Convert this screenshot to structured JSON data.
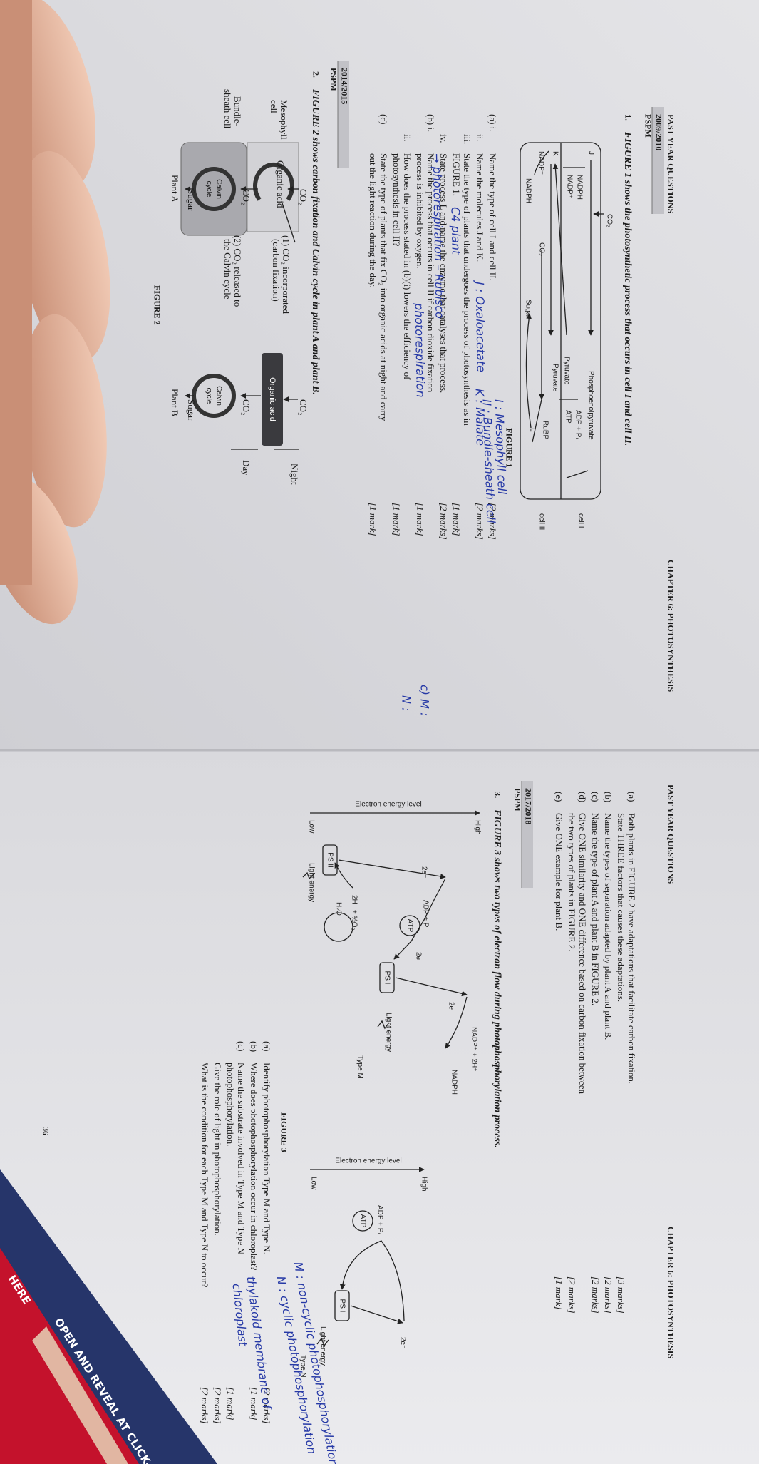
{
  "left_page": {
    "running_head": "PAST YEAR QUESTIONS",
    "chapter_head": "CHAPTER 6: PHOTOSYNTHESIS",
    "q1": {
      "session": "2009/2010",
      "exam": "PSPM",
      "number": "1.",
      "stem": "FIGURE 1 shows the photosynthetic process that occurs in cell I and cell II.",
      "figure": {
        "labels": [
          "CO₂",
          "J",
          "Phosphoenolpyruvate",
          "cell I",
          "NADPH",
          "NADP⁺",
          "ADP + Pᵢ",
          "ATP",
          "Pyruvate",
          "K",
          "Pyruvate",
          "RuBP",
          "L",
          "cell II",
          "NADP⁺",
          "CO₂",
          "NADPH",
          "Sugar"
        ],
        "caption": "FIGURE 1"
      },
      "parts": [
        {
          "label": "(a)  i.",
          "lines": [
            "Name the type of cell I and cell II."
          ],
          "marks": "[2 marks]"
        },
        {
          "label": "ii.",
          "lines": [
            "Name the molecules J and K."
          ],
          "marks": "[2 marks]"
        },
        {
          "label": "iii.",
          "lines": [
            "State the type of plants that undergoes the process of photosynthesis as in",
            "FIGURE 1."
          ],
          "marks": "[1 mark]"
        },
        {
          "label": "iv.",
          "lines": [
            "State process L and name the enzyme that catalyses that process."
          ],
          "marks": "[2 marks]"
        },
        {
          "label": "(b)  i.",
          "lines": [
            "Name the process that occurs in cell II if carbon dioxide fixation",
            "process is inhibited by oxygen."
          ],
          "marks": "[1 mark]"
        },
        {
          "label": "ii.",
          "lines": [
            "How does the process stated in (b)(i) lowers the efficiency of",
            "photosynthesis in cell II?"
          ],
          "marks": "[1 mark]"
        },
        {
          "label": "(c)",
          "lines": [
            "State the type of plants that fix CO₂ into organic acids at night and carry",
            "out the light reaction during the day."
          ],
          "marks": "[1 mark]"
        }
      ]
    },
    "q2": {
      "session": "2014/2015",
      "exam": "PSPM",
      "number": "2.",
      "stem": "FIGURE 2 shows carbon fixation and Calvin cycle in plant A and plant B.",
      "figure": {
        "plant_a": [
          "CO₂",
          "Mesophyll",
          "cell",
          "Organic acid",
          "(1) CO₂ incorporated",
          "(carbon fixation)",
          "CO₂",
          "Bundle-",
          "sheath cell",
          "Calvin",
          "cycle",
          "(2) CO₂ released to",
          "the Calvin cycle",
          "Sugar",
          "Plant A"
        ],
        "plant_b": [
          "CO₂",
          "Night",
          "Organic acid",
          "Day",
          "CO₂",
          "Calvin",
          "cycle",
          "Sugar",
          "Plant B"
        ],
        "caption": "FIGURE 2"
      }
    }
  },
  "right_page": {
    "running_head": "PAST YEAR QUESTIONS",
    "chapter_head": "CHAPTER 6: PHOTOSYNTHESIS",
    "q2_parts": [
      {
        "label": "(a)",
        "lines": [
          "Both plants in FIGURE 2 have adaptations that facilitate carbon fixation.",
          "State THREE factors that causes these adaptations."
        ],
        "marks": "[3 marks]"
      },
      {
        "label": "(b)",
        "lines": [
          "Name the types of separation adapted by plant A and plant B."
        ],
        "marks": "[2 marks]"
      },
      {
        "label": "(c)",
        "lines": [
          "Name the type of plant A and plant B in FIGURE 2."
        ],
        "marks": "[2 marks]"
      },
      {
        "label": "(d)",
        "lines": [
          "Give ONE similarity and ONE difference based on carbon fixation between",
          "the two types of plants in FIGURE 2."
        ],
        "marks": "[2 marks]"
      },
      {
        "label": "(e)",
        "lines": [
          "Give ONE example for plant B."
        ],
        "marks": "[1 mark]"
      }
    ],
    "q3": {
      "session": "2017/2018",
      "exam": "PSPM",
      "number": "3.",
      "stem": "FIGURE 3 shows two types of electron flow during photophosphorylation process.",
      "figure": {
        "type_m": [
          "High",
          "Electron energy level",
          "Low",
          "2e⁻",
          "NADP⁺ + 2H⁺",
          "NADPH",
          "2e⁻",
          "PS I",
          "Light energy",
          "ADP + Pᵢ",
          "ATP",
          "2e⁻",
          "2H⁺ + ½O₂",
          "H₂O",
          "PS II",
          "Light energy",
          "Type M"
        ],
        "type_n": [
          "High",
          "Electron energy level",
          "Low",
          "2e⁻",
          "ADP + Pᵢ",
          "ATP",
          "PS I",
          "Light energy",
          "Type N"
        ],
        "caption": "FIGURE 3"
      },
      "parts": [
        {
          "label": "(a)",
          "lines": [
            "Identify photophosphorylation Type M and Type N."
          ],
          "marks": "[2 marks]"
        },
        {
          "label": "(b)",
          "lines": [
            "Where does photophosphorylation occur in chloroplast?"
          ],
          "marks": "[1 mark]"
        },
        {
          "label": "(c)",
          "lines": [
            "Name the substrate involved in Type M and Type N",
            "photophosphorylation."
          ],
          "marks": "[1 mark]"
        },
        {
          "lines": [
            "Give the role of light in photophosphorylation."
          ],
          "marks": "[2 marks]"
        },
        {
          "lines": [
            "What is the condition for each Type M and Type N to occur?"
          ],
          "marks": "[2 marks]"
        }
      ]
    },
    "page_number": "36"
  },
  "handwriting": {
    "left": [
      "I : Mesophyll cell",
      "II : Bundle-sheath cell",
      "J : Oxaloacetate",
      "K : Malate",
      "C4 plant",
      "→ photorespiration – Rubisco",
      "photorespiration"
    ],
    "right": [
      "c) M :",
      "N :",
      "M : non-cyclic photophosphorylation",
      "N : cyclic photophosphorylation",
      "thylakoid membrane of",
      "chloroplast"
    ]
  },
  "packet": {
    "text": "OPEN AND REVEAL AT CLICK-ST",
    "tab": "HERE"
  }
}
